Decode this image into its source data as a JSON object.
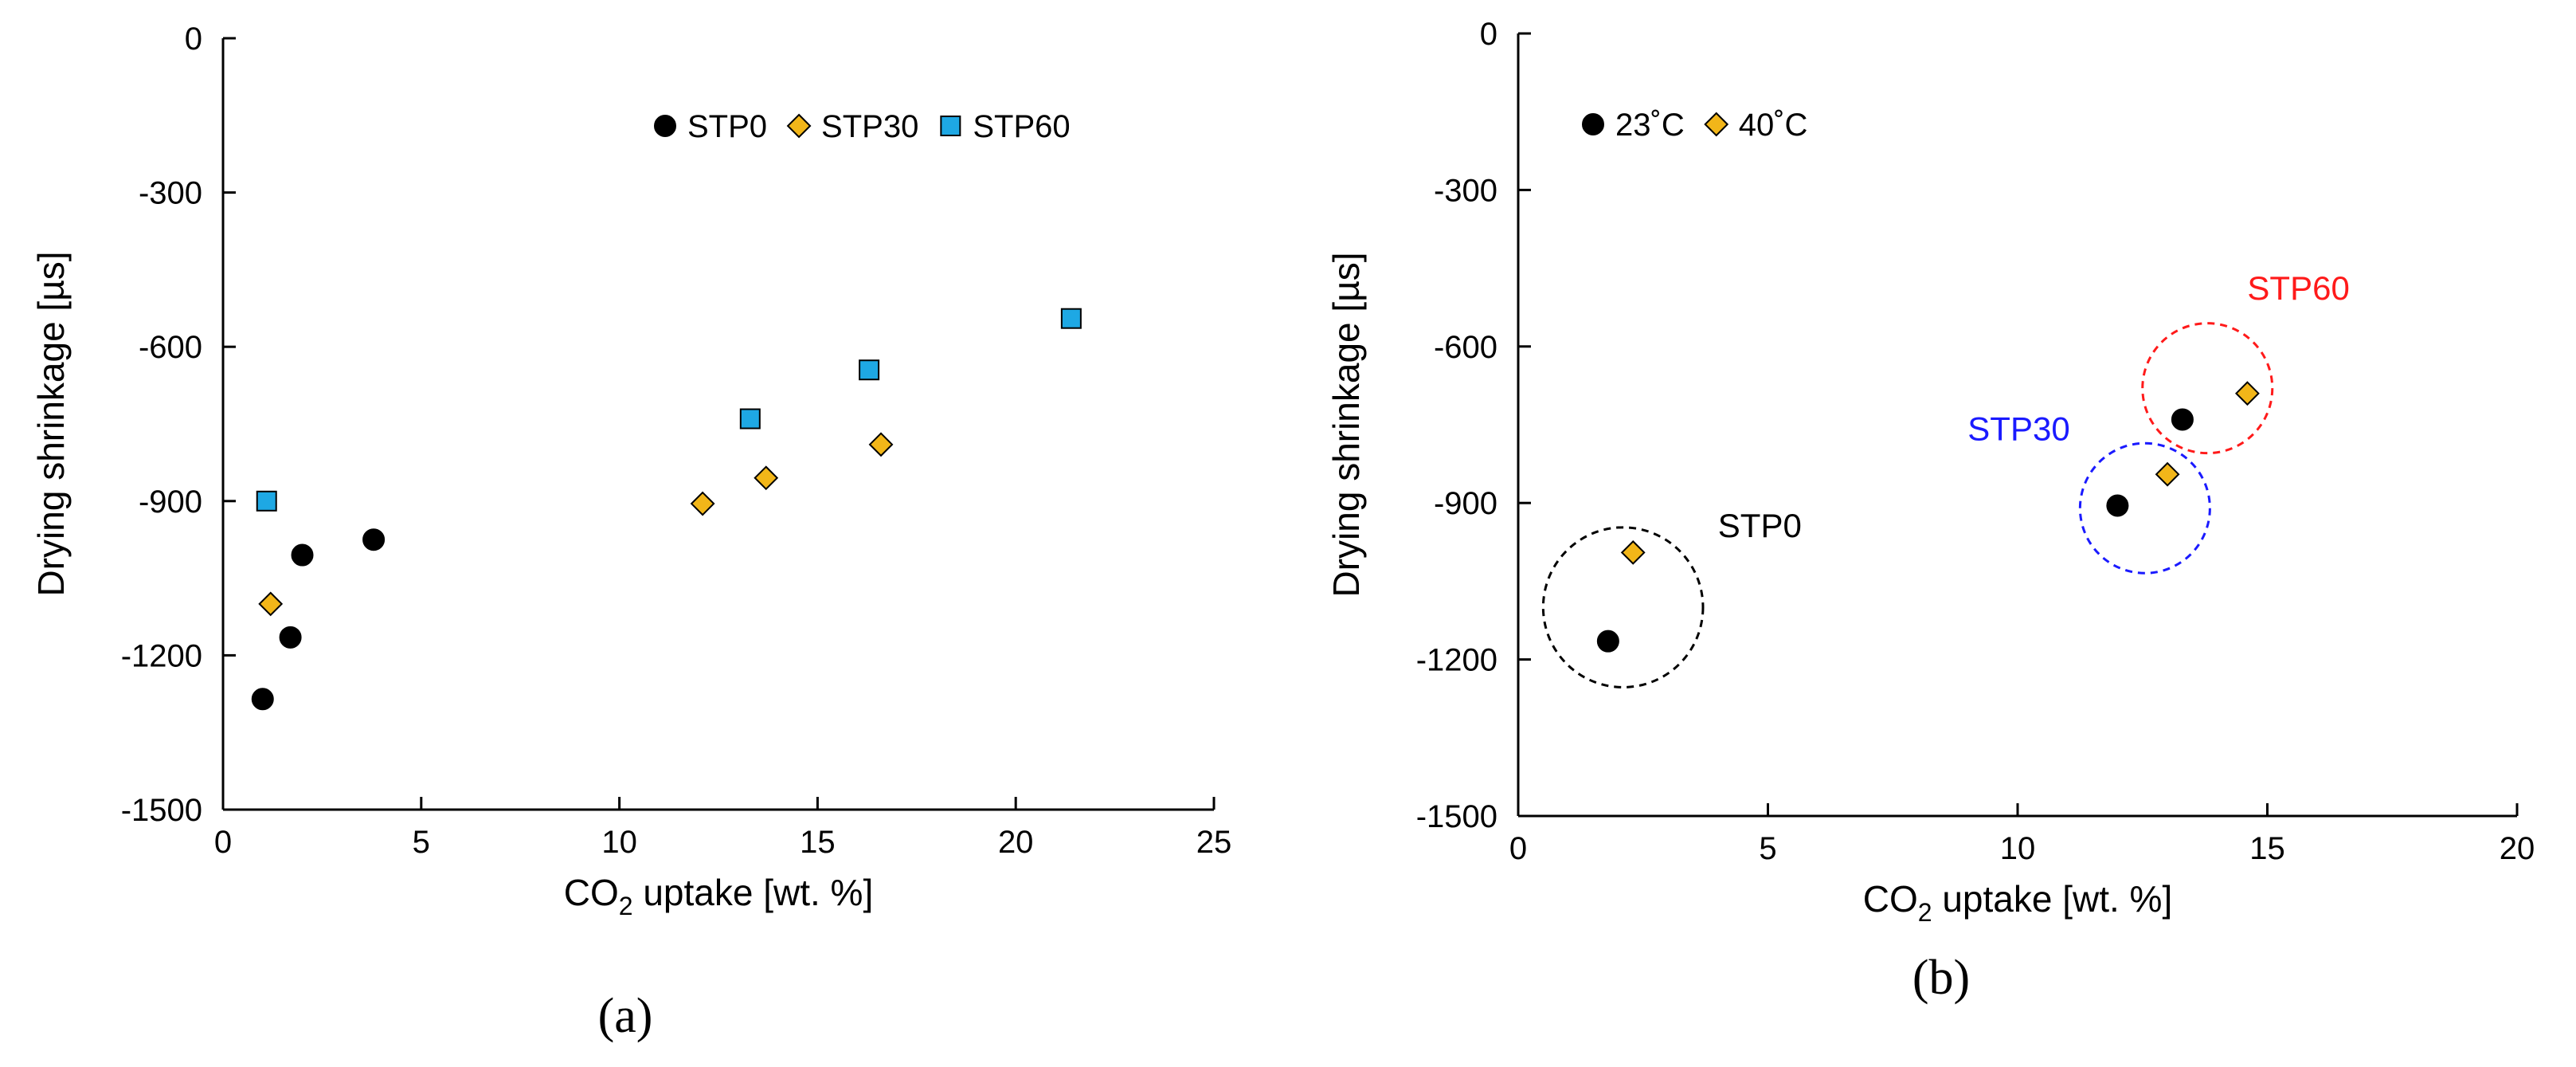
{
  "chart_data": [
    {
      "id": "a",
      "type": "scatter",
      "panel_label": "(a)",
      "xlabel": {
        "pre": "CO",
        "sub": "2",
        "post": " uptake [wt. %]"
      },
      "ylabel": "Drying shrinkage [µs]",
      "xlim": [
        0,
        25
      ],
      "ylim": [
        -1500,
        0
      ],
      "xticks": [
        0,
        5,
        10,
        15,
        20,
        25
      ],
      "yticks": [
        0,
        -300,
        -600,
        -900,
        -1200,
        -1500
      ],
      "grid": false,
      "legend_position": "top-right",
      "series": [
        {
          "name": "STP0",
          "marker": "circle",
          "color": "#000000",
          "points": [
            [
              1.0,
              -1285
            ],
            [
              1.7,
              -1165
            ],
            [
              2.0,
              -1005
            ],
            [
              3.8,
              -975
            ]
          ]
        },
        {
          "name": "STP30",
          "marker": "diamond",
          "color": "#f2b619",
          "points": [
            [
              1.2,
              -1100
            ],
            [
              12.1,
              -905
            ],
            [
              13.7,
              -855
            ],
            [
              16.6,
              -790
            ]
          ]
        },
        {
          "name": "STP60",
          "marker": "square",
          "color": "#1ea8e4",
          "points": [
            [
              1.1,
              -900
            ],
            [
              13.3,
              -740
            ],
            [
              16.3,
              -645
            ],
            [
              21.4,
              -545
            ]
          ]
        }
      ],
      "annotations": []
    },
    {
      "id": "b",
      "type": "scatter",
      "panel_label": "(b)",
      "xlabel": {
        "pre": "CO",
        "sub": "2",
        "post": " uptake [wt. %]"
      },
      "ylabel": "Drying shrinkage [µs]",
      "xlim": [
        0,
        20
      ],
      "ylim": [
        -1500,
        0
      ],
      "xticks": [
        0,
        5,
        10,
        15,
        20
      ],
      "yticks": [
        0,
        -300,
        -600,
        -900,
        -1200,
        -1500
      ],
      "grid": false,
      "legend_position": "top-left",
      "series": [
        {
          "name": "23˚C",
          "marker": "circle",
          "color": "#000000",
          "points": [
            [
              1.8,
              -1165
            ],
            [
              12.0,
              -905
            ],
            [
              13.3,
              -740
            ]
          ]
        },
        {
          "name": "40˚C",
          "marker": "diamond",
          "color": "#f2b619",
          "points": [
            [
              2.3,
              -995
            ],
            [
              13.0,
              -845
            ],
            [
              14.6,
              -690
            ]
          ]
        }
      ],
      "annotations": [
        {
          "text": "STP0",
          "color": "#000000",
          "text_at": [
            4.0,
            -965
          ],
          "circle_center": [
            2.1,
            -1100
          ],
          "circle_radius": 1.6
        },
        {
          "text": "STP30",
          "color": "#1a1aff",
          "text_at": [
            9.0,
            -780
          ],
          "circle_center": [
            12.55,
            -910
          ],
          "circle_radius": 1.3
        },
        {
          "text": "STP60",
          "color": "#ff1a1a",
          "text_at": [
            14.6,
            -510
          ],
          "circle_center": [
            13.8,
            -680
          ],
          "circle_radius": 1.3
        }
      ]
    }
  ]
}
